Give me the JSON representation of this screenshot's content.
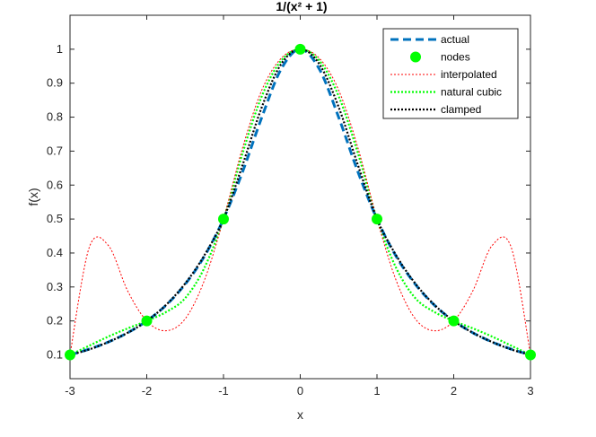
{
  "chart_data": {
    "type": "line",
    "title": "1/(x² + 1)",
    "xlabel": "x",
    "ylabel": "f(x)",
    "xlim": [
      -3,
      3
    ],
    "ylim": [
      0.03,
      1.1
    ],
    "xticks": [
      -3,
      -2,
      -1,
      0,
      1,
      2,
      3
    ],
    "yticks": [
      0.1,
      0.2,
      0.3,
      0.4,
      0.5,
      0.6,
      0.7,
      0.8,
      0.9,
      1
    ],
    "grid": false,
    "legend_position": "top-right",
    "x": [
      -3,
      -2.75,
      -2.5,
      -2.25,
      -2,
      -1.75,
      -1.5,
      -1.25,
      -1,
      -0.75,
      -0.5,
      -0.25,
      0,
      0.25,
      0.5,
      0.75,
      1,
      1.25,
      1.5,
      1.75,
      2,
      2.25,
      2.5,
      2.75,
      3
    ],
    "series": [
      {
        "name": "actual",
        "color": "#0072BD",
        "style": "dashed",
        "y": [
          0.1,
          0.117,
          0.138,
          0.165,
          0.2,
          0.246,
          0.308,
          0.39,
          0.5,
          0.64,
          0.8,
          0.941,
          1,
          0.941,
          0.8,
          0.64,
          0.5,
          0.39,
          0.308,
          0.246,
          0.2,
          0.165,
          0.138,
          0.117,
          0.1
        ]
      },
      {
        "name": "nodes",
        "color": "#00FF00",
        "style": "markers",
        "x": [
          -3,
          -2,
          -1,
          0,
          1,
          2,
          3
        ],
        "y": [
          0.1,
          0.2,
          0.5,
          1,
          0.5,
          0.2,
          0.1
        ]
      },
      {
        "name": "interpolated",
        "color": "#FF0000",
        "style": "dotted-thin",
        "y": [
          0.1,
          0.416,
          0.422,
          0.289,
          0.2,
          0.171,
          0.206,
          0.319,
          0.5,
          0.711,
          0.88,
          0.973,
          1,
          0.973,
          0.88,
          0.711,
          0.5,
          0.319,
          0.206,
          0.171,
          0.2,
          0.289,
          0.422,
          0.416,
          0.1
        ]
      },
      {
        "name": "natural cubic",
        "color": "#00FF00",
        "style": "dotted",
        "y": [
          0.1,
          0.127,
          0.154,
          0.178,
          0.2,
          0.226,
          0.267,
          0.356,
          0.5,
          0.695,
          0.862,
          0.966,
          1,
          0.966,
          0.862,
          0.695,
          0.5,
          0.356,
          0.267,
          0.226,
          0.2,
          0.178,
          0.154,
          0.127,
          0.1
        ]
      },
      {
        "name": "clamped",
        "color": "#000000",
        "style": "dotted",
        "y": [
          0.1,
          0.116,
          0.138,
          0.165,
          0.2,
          0.247,
          0.31,
          0.393,
          0.5,
          0.66,
          0.83,
          0.956,
          1,
          0.956,
          0.83,
          0.66,
          0.5,
          0.393,
          0.31,
          0.247,
          0.2,
          0.165,
          0.138,
          0.116,
          0.1
        ]
      }
    ]
  }
}
